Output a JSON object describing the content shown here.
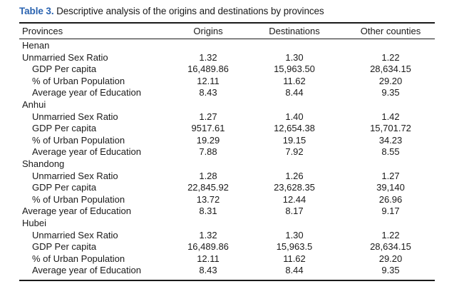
{
  "caption": {
    "label": "Table 3.",
    "text": " Descriptive analysis of the origins and destinations by provinces"
  },
  "columns": [
    "Provinces",
    "Origins",
    "Destinations",
    "Other counties"
  ],
  "rows": [
    {
      "label": "Henan",
      "indent": false,
      "values": [
        "",
        "",
        ""
      ]
    },
    {
      "label": "Unmarried Sex Ratio",
      "indent": false,
      "values": [
        "1.32",
        "1.30",
        "1.22"
      ]
    },
    {
      "label": "GDP Per capita",
      "indent": true,
      "values": [
        "16,489.86",
        "15,963.50",
        "28,634.15"
      ]
    },
    {
      "label": "% of Urban Population",
      "indent": true,
      "values": [
        "12.11",
        "11.62",
        "29.20"
      ]
    },
    {
      "label": "Average year of Education",
      "indent": true,
      "values": [
        "8.43",
        "8.44",
        "9.35"
      ]
    },
    {
      "label": "Anhui",
      "indent": false,
      "values": [
        "",
        "",
        ""
      ]
    },
    {
      "label": "Unmarried Sex Ratio",
      "indent": true,
      "values": [
        "1.27",
        "1.40",
        "1.42"
      ]
    },
    {
      "label": "GDP Per capita",
      "indent": true,
      "values": [
        "9517.61",
        "12,654.38",
        "15,701.72"
      ]
    },
    {
      "label": "% of Urban Population",
      "indent": true,
      "values": [
        "19.29",
        "19.15",
        "34.23"
      ]
    },
    {
      "label": "Average year of Education",
      "indent": true,
      "values": [
        "7.88",
        "7.92",
        "8.55"
      ]
    },
    {
      "label": "Shandong",
      "indent": false,
      "values": [
        "",
        "",
        ""
      ]
    },
    {
      "label": "Unmarried Sex Ratio",
      "indent": true,
      "values": [
        "1.28",
        "1.26",
        "1.27"
      ]
    },
    {
      "label": "GDP Per capita",
      "indent": true,
      "values": [
        "22,845.92",
        "23,628.35",
        "39,140"
      ]
    },
    {
      "label": "% of Urban Population",
      "indent": true,
      "values": [
        "13.72",
        "12.44",
        "26.96"
      ]
    },
    {
      "label": "Average year of Education",
      "indent": false,
      "values": [
        "8.31",
        "8.17",
        "9.17"
      ]
    },
    {
      "label": "Hubei",
      "indent": false,
      "values": [
        "",
        "",
        ""
      ]
    },
    {
      "label": "Unmarried Sex Ratio",
      "indent": true,
      "values": [
        "1.32",
        "1.30",
        "1.22"
      ]
    },
    {
      "label": "GDP Per capita",
      "indent": true,
      "values": [
        "16,489.86",
        "15,963.5",
        "28,634.15"
      ]
    },
    {
      "label": "% of Urban Population",
      "indent": true,
      "values": [
        "12.11",
        "11.62",
        "29.20"
      ]
    },
    {
      "label": "Average year of Education",
      "indent": true,
      "values": [
        "8.43",
        "8.44",
        "9.35"
      ]
    }
  ]
}
